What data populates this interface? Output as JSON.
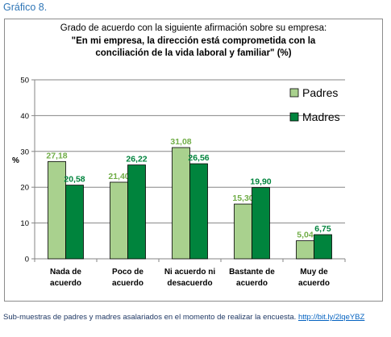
{
  "caption": "Gráfico 8.",
  "source": {
    "text": "Sub-muestras de padres y madres asalariados en el momento de realizar la encuesta.",
    "link": "http://bit.ly/2lqeYBZ"
  },
  "chart_data": {
    "type": "bar",
    "title": "Grado de acuerdo con la siguiente afirmación sobre su empresa:",
    "subtitle_lines": [
      "\"En mi empresa, la dirección está comprometida con la",
      "conciliación de la vida laboral y familiar\" (%)"
    ],
    "ylabel": "%",
    "ylim": [
      0,
      50
    ],
    "yticks": [
      "0",
      "10",
      "20",
      "30",
      "40",
      "50"
    ],
    "grid": true,
    "legend_position": "top-right",
    "categories": [
      [
        "Nada de",
        "acuerdo"
      ],
      [
        "Poco de",
        "acuerdo"
      ],
      [
        "Ni acuerdo ni",
        "desacuerdo"
      ],
      [
        "Bastante de",
        "acuerdo"
      ],
      [
        "Muy de",
        "acuerdo"
      ]
    ],
    "series": [
      {
        "name": "Padres",
        "values": [
          27.18,
          21.4,
          31.08,
          15.3,
          5.04
        ],
        "labels": [
          "27,18",
          "21,40",
          "31,08",
          "15,30",
          "5,04"
        ],
        "color": "#a9d18e",
        "label_color": "#70ad47"
      },
      {
        "name": "Madres",
        "values": [
          20.58,
          26.22,
          26.56,
          19.9,
          6.75
        ],
        "labels": [
          "20,58",
          "26,22",
          "26,56",
          "19,90",
          "6,75"
        ],
        "color": "#00843d",
        "label_color": "#00843d"
      }
    ]
  }
}
